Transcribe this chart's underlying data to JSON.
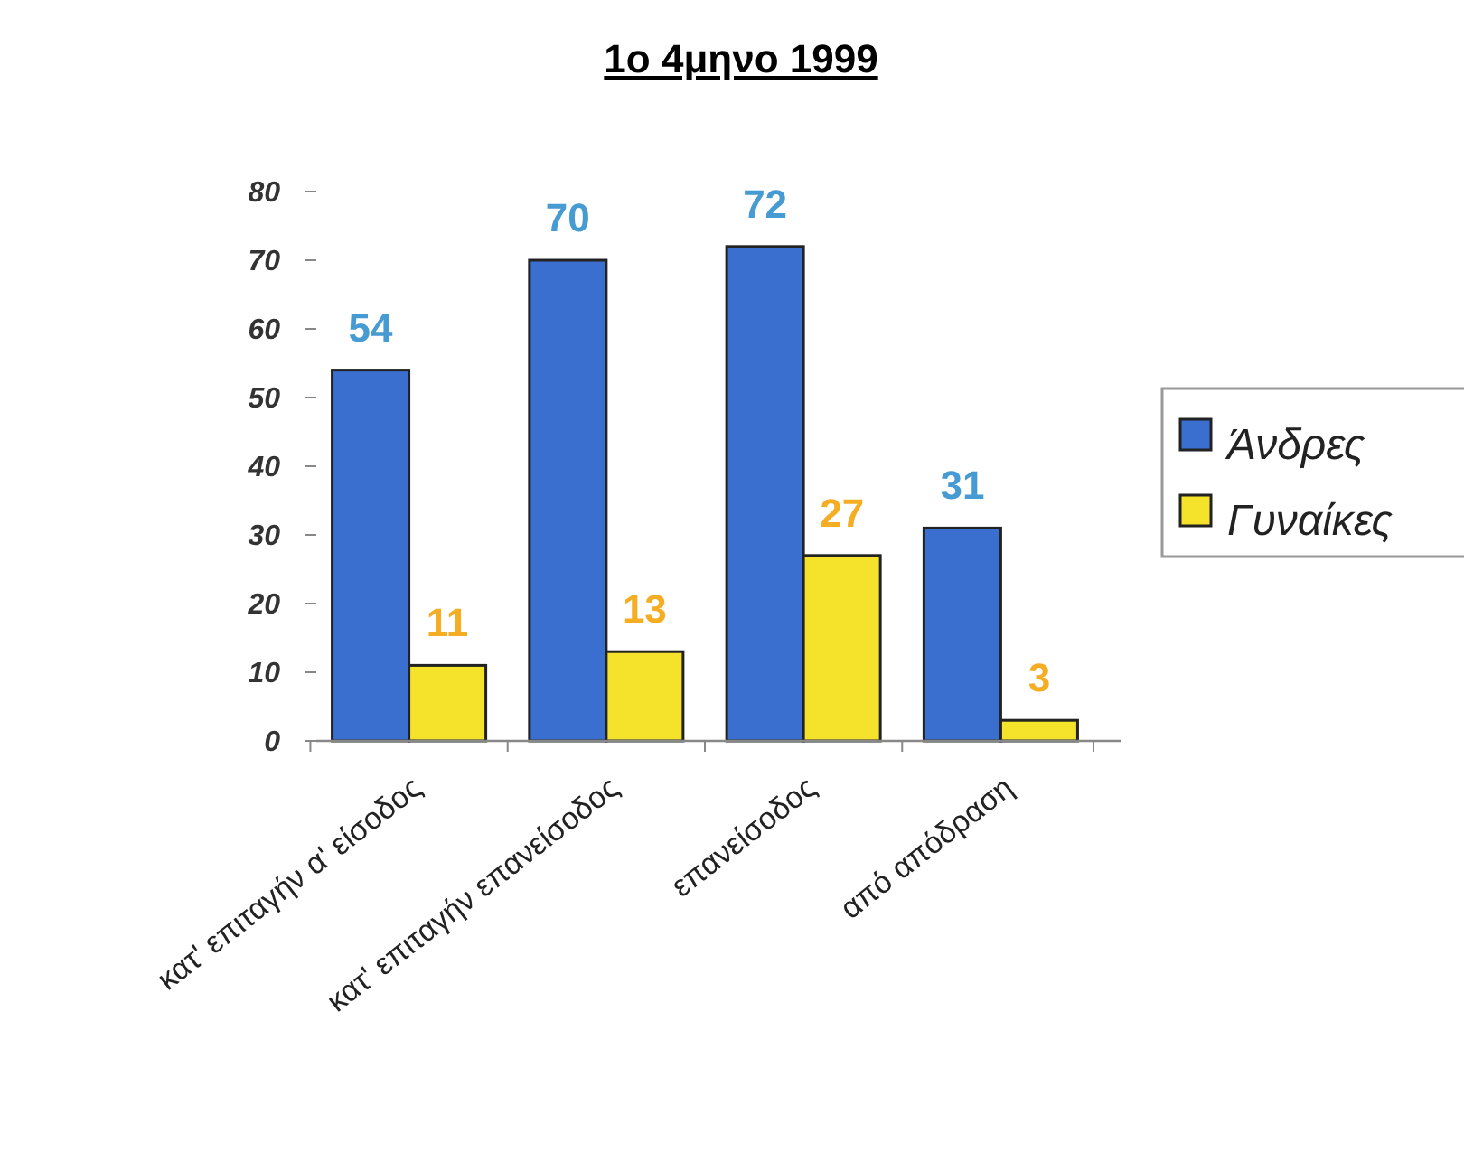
{
  "chart_data": {
    "type": "bar",
    "title": "1ο 4μηνο 1999",
    "categories": [
      "κατ' επιταγήν α' είσοδος",
      "κατ' επιταγήν επανείσοδος",
      "επανείσοδος",
      "από απόδραση"
    ],
    "series": [
      {
        "name": "Άνδρες",
        "color": "#3a6fcf",
        "values": [
          54,
          70,
          72,
          31
        ]
      },
      {
        "name": "Γυναίκες",
        "color": "#f5e22a",
        "values": [
          11,
          13,
          27,
          3
        ]
      }
    ],
    "ylim": [
      0,
      80
    ],
    "yticks": [
      0,
      10,
      20,
      30,
      40,
      50,
      60,
      70,
      80
    ],
    "grid": false,
    "legend": "right",
    "data_labels": true
  }
}
